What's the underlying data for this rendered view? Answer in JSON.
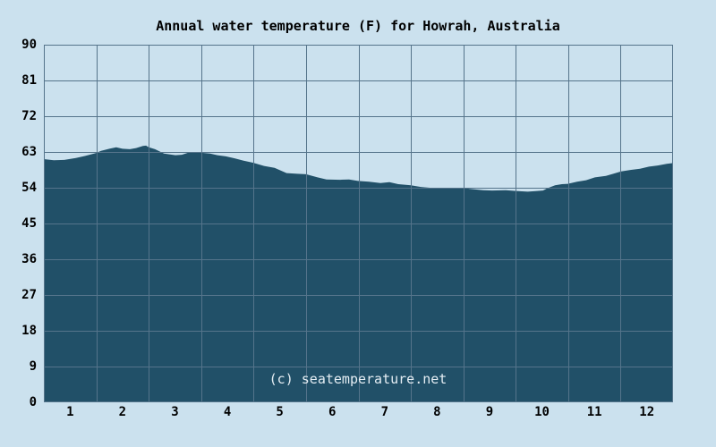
{
  "chart_data": {
    "type": "area",
    "title": "Annual water temperature (F) for Howrah, Australia",
    "watermark": "(c) seatemperature.net",
    "xlabel": "",
    "ylabel": "",
    "ylim": [
      0,
      90
    ],
    "xlim_months": [
      0,
      12
    ],
    "grid": true,
    "legend_position": "none",
    "y_ticks": [
      0,
      9,
      18,
      27,
      36,
      45,
      54,
      63,
      72,
      81,
      90
    ],
    "x_tick_labels": [
      "1",
      "2",
      "3",
      "4",
      "5",
      "6",
      "7",
      "8",
      "9",
      "10",
      "11",
      "12"
    ],
    "monthly_values_F": [
      61.2,
      63.8,
      62.3,
      61.8,
      58.4,
      56.1,
      55.3,
      54.0,
      53.3,
      53.4,
      56.6,
      59.3
    ],
    "curve_points": [
      [
        0.0,
        61.2
      ],
      [
        0.19,
        60.9
      ],
      [
        0.39,
        61.0
      ],
      [
        0.61,
        61.5
      ],
      [
        0.79,
        62.0
      ],
      [
        0.99,
        62.7
      ],
      [
        1.09,
        63.3
      ],
      [
        1.25,
        63.8
      ],
      [
        1.38,
        64.2
      ],
      [
        1.5,
        63.8
      ],
      [
        1.64,
        63.7
      ],
      [
        1.76,
        64.0
      ],
      [
        1.89,
        64.5
      ],
      [
        1.95,
        64.6
      ],
      [
        2.0,
        64.2
      ],
      [
        2.12,
        63.7
      ],
      [
        2.29,
        62.6
      ],
      [
        2.51,
        62.2
      ],
      [
        2.63,
        62.3
      ],
      [
        2.75,
        62.8
      ],
      [
        2.88,
        62.9
      ],
      [
        3.0,
        62.8
      ],
      [
        3.17,
        62.6
      ],
      [
        3.31,
        62.2
      ],
      [
        3.47,
        61.9
      ],
      [
        3.64,
        61.4
      ],
      [
        3.81,
        60.8
      ],
      [
        3.99,
        60.3
      ],
      [
        4.2,
        59.5
      ],
      [
        4.4,
        59.0
      ],
      [
        4.63,
        57.7
      ],
      [
        4.83,
        57.5
      ],
      [
        5.0,
        57.4
      ],
      [
        5.22,
        56.6
      ],
      [
        5.39,
        56.1
      ],
      [
        5.65,
        56.0
      ],
      [
        5.82,
        56.1
      ],
      [
        5.99,
        55.7
      ],
      [
        6.2,
        55.5
      ],
      [
        6.42,
        55.2
      ],
      [
        6.59,
        55.4
      ],
      [
        6.76,
        54.9
      ],
      [
        7.0,
        54.6
      ],
      [
        7.19,
        54.2
      ],
      [
        7.36,
        54.0
      ],
      [
        7.99,
        54.0
      ],
      [
        8.12,
        53.7
      ],
      [
        8.38,
        53.4
      ],
      [
        8.55,
        53.3
      ],
      [
        8.81,
        53.4
      ],
      [
        9.0,
        53.2
      ],
      [
        9.23,
        53.0
      ],
      [
        9.41,
        53.2
      ],
      [
        9.52,
        53.3
      ],
      [
        9.61,
        53.9
      ],
      [
        9.75,
        54.6
      ],
      [
        9.88,
        54.9
      ],
      [
        10.0,
        55.0
      ],
      [
        10.17,
        55.5
      ],
      [
        10.34,
        55.9
      ],
      [
        10.51,
        56.6
      ],
      [
        10.72,
        57.0
      ],
      [
        10.86,
        57.5
      ],
      [
        11.01,
        58.1
      ],
      [
        11.2,
        58.5
      ],
      [
        11.37,
        58.8
      ],
      [
        11.54,
        59.3
      ],
      [
        11.71,
        59.6
      ],
      [
        11.88,
        60.0
      ],
      [
        12.0,
        60.2
      ]
    ],
    "colors": {
      "background": "#cbe1ee",
      "area_fill": "#215068",
      "grid_line": "#55748b",
      "title_text": "#000000",
      "axis_text": "#000000",
      "watermark_text": "#e4edf3"
    }
  }
}
